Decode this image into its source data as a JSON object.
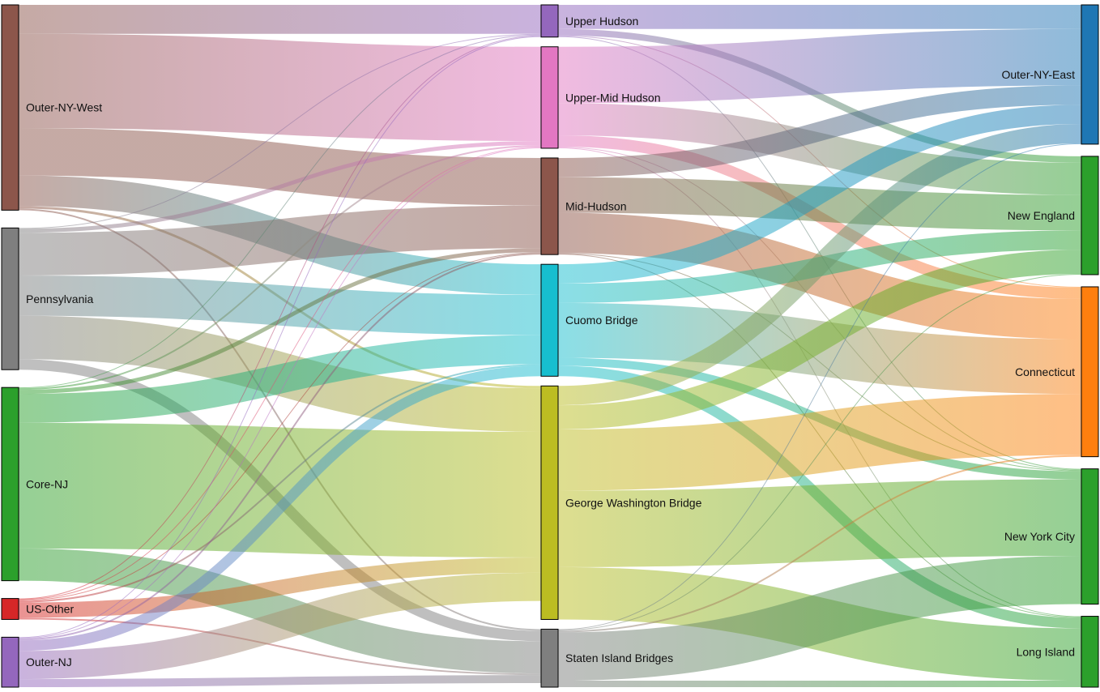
{
  "chart_data": {
    "type": "sankey",
    "title": "",
    "nodes": [
      {
        "id": "outer_ny_west",
        "name": "Outer-NY-West",
        "column": 0,
        "color": "#8c564b"
      },
      {
        "id": "pennsylvania",
        "name": "Pennsylvania",
        "column": 0,
        "color": "#7f7f7f"
      },
      {
        "id": "core_nj",
        "name": "Core-NJ",
        "column": 0,
        "color": "#2ca02c"
      },
      {
        "id": "us_other",
        "name": "US-Other",
        "column": 0,
        "color": "#d62728"
      },
      {
        "id": "outer_nj",
        "name": "Outer-NJ",
        "column": 0,
        "color": "#9467bd"
      },
      {
        "id": "upper_hudson",
        "name": "Upper Hudson",
        "column": 1,
        "color": "#9467bd"
      },
      {
        "id": "upper_mid_hudson",
        "name": "Upper-Mid Hudson",
        "column": 1,
        "color": "#e377c2"
      },
      {
        "id": "mid_hudson",
        "name": "Mid-Hudson",
        "column": 1,
        "color": "#8c564b"
      },
      {
        "id": "cuomo_bridge",
        "name": "Cuomo Bridge",
        "column": 1,
        "color": "#17becf"
      },
      {
        "id": "gwb",
        "name": "George Washington Bridge",
        "column": 1,
        "color": "#bcbd22"
      },
      {
        "id": "staten_island",
        "name": "Staten Island Bridges",
        "column": 1,
        "color": "#7f7f7f"
      },
      {
        "id": "outer_ny_east",
        "name": "Outer-NY-East",
        "column": 2,
        "color": "#1f77b4"
      },
      {
        "id": "new_england",
        "name": "New England",
        "column": 2,
        "color": "#2ca02c"
      },
      {
        "id": "connecticut",
        "name": "Connecticut",
        "column": 2,
        "color": "#ff7f0e"
      },
      {
        "id": "new_york_city",
        "name": "New York City",
        "column": 2,
        "color": "#2ca02c"
      },
      {
        "id": "long_island",
        "name": "Long Island",
        "column": 2,
        "color": "#2ca02c"
      }
    ],
    "links": [
      {
        "source": "outer_ny_west",
        "target": "upper_hudson",
        "value": 36
      },
      {
        "source": "outer_ny_west",
        "target": "upper_mid_hudson",
        "value": 117
      },
      {
        "source": "outer_ny_west",
        "target": "mid_hudson",
        "value": 59
      },
      {
        "source": "outer_ny_west",
        "target": "cuomo_bridge",
        "value": 38
      },
      {
        "source": "outer_ny_west",
        "target": "gwb",
        "value": 3
      },
      {
        "source": "outer_ny_west",
        "target": "staten_island",
        "value": 2
      },
      {
        "source": "pennsylvania",
        "target": "upper_hudson",
        "value": 1
      },
      {
        "source": "pennsylvania",
        "target": "upper_mid_hudson",
        "value": 5
      },
      {
        "source": "pennsylvania",
        "target": "mid_hudson",
        "value": 53
      },
      {
        "source": "pennsylvania",
        "target": "cuomo_bridge",
        "value": 50
      },
      {
        "source": "pennsylvania",
        "target": "gwb",
        "value": 54
      },
      {
        "source": "pennsylvania",
        "target": "staten_island",
        "value": 13
      },
      {
        "source": "core_nj",
        "target": "upper_hudson",
        "value": 1
      },
      {
        "source": "core_nj",
        "target": "upper_mid_hudson",
        "value": 2
      },
      {
        "source": "core_nj",
        "target": "mid_hudson",
        "value": 5
      },
      {
        "source": "core_nj",
        "target": "cuomo_bridge",
        "value": 36
      },
      {
        "source": "core_nj",
        "target": "gwb",
        "value": 156
      },
      {
        "source": "core_nj",
        "target": "staten_island",
        "value": 40
      },
      {
        "source": "us_other",
        "target": "upper_hudson",
        "value": 1
      },
      {
        "source": "us_other",
        "target": "upper_mid_hudson",
        "value": 1
      },
      {
        "source": "us_other",
        "target": "mid_hudson",
        "value": 1
      },
      {
        "source": "us_other",
        "target": "cuomo_bridge",
        "value": 2
      },
      {
        "source": "us_other",
        "target": "gwb",
        "value": 19
      },
      {
        "source": "us_other",
        "target": "staten_island",
        "value": 2
      },
      {
        "source": "outer_nj",
        "target": "upper_hudson",
        "value": 1
      },
      {
        "source": "outer_nj",
        "target": "upper_mid_hudson",
        "value": 1
      },
      {
        "source": "outer_nj",
        "target": "mid_hudson",
        "value": 2
      },
      {
        "source": "outer_nj",
        "target": "cuomo_bridge",
        "value": 13
      },
      {
        "source": "outer_nj",
        "target": "gwb",
        "value": 35
      },
      {
        "source": "outer_nj",
        "target": "staten_island",
        "value": 10
      },
      {
        "source": "upper_hudson",
        "target": "outer_ny_east",
        "value": 30
      },
      {
        "source": "upper_hudson",
        "target": "new_england",
        "value": 8
      },
      {
        "source": "upper_hudson",
        "target": "connecticut",
        "value": 1
      },
      {
        "source": "upper_hudson",
        "target": "new_york_city",
        "value": 1
      },
      {
        "source": "upper_mid_hudson",
        "target": "outer_ny_east",
        "value": 70
      },
      {
        "source": "upper_mid_hudson",
        "target": "new_england",
        "value": 40
      },
      {
        "source": "upper_mid_hudson",
        "target": "connecticut",
        "value": 14
      },
      {
        "source": "upper_mid_hudson",
        "target": "new_york_city",
        "value": 1
      },
      {
        "source": "upper_mid_hudson",
        "target": "long_island",
        "value": 1
      },
      {
        "source": "mid_hudson",
        "target": "outer_ny_east",
        "value": 24
      },
      {
        "source": "mid_hudson",
        "target": "new_england",
        "value": 44
      },
      {
        "source": "mid_hudson",
        "target": "connecticut",
        "value": 50
      },
      {
        "source": "mid_hudson",
        "target": "new_york_city",
        "value": 1
      },
      {
        "source": "mid_hudson",
        "target": "long_island",
        "value": 1
      },
      {
        "source": "cuomo_bridge",
        "target": "outer_ny_east",
        "value": 24
      },
      {
        "source": "cuomo_bridge",
        "target": "new_england",
        "value": 24
      },
      {
        "source": "cuomo_bridge",
        "target": "connecticut",
        "value": 68
      },
      {
        "source": "cuomo_bridge",
        "target": "new_york_city",
        "value": 10
      },
      {
        "source": "cuomo_bridge",
        "target": "long_island",
        "value": 13
      },
      {
        "source": "gwb",
        "target": "outer_ny_east",
        "value": 24
      },
      {
        "source": "gwb",
        "target": "new_england",
        "value": 30
      },
      {
        "source": "gwb",
        "target": "connecticut",
        "value": 76
      },
      {
        "source": "gwb",
        "target": "new_york_city",
        "value": 95
      },
      {
        "source": "gwb",
        "target": "long_island",
        "value": 65
      },
      {
        "source": "staten_island",
        "target": "outer_ny_east",
        "value": 1
      },
      {
        "source": "staten_island",
        "target": "new_england",
        "value": 1
      },
      {
        "source": "staten_island",
        "target": "connecticut",
        "value": 2
      },
      {
        "source": "staten_island",
        "target": "new_york_city",
        "value": 60
      },
      {
        "source": "staten_island",
        "target": "long_island",
        "value": 8
      }
    ]
  }
}
